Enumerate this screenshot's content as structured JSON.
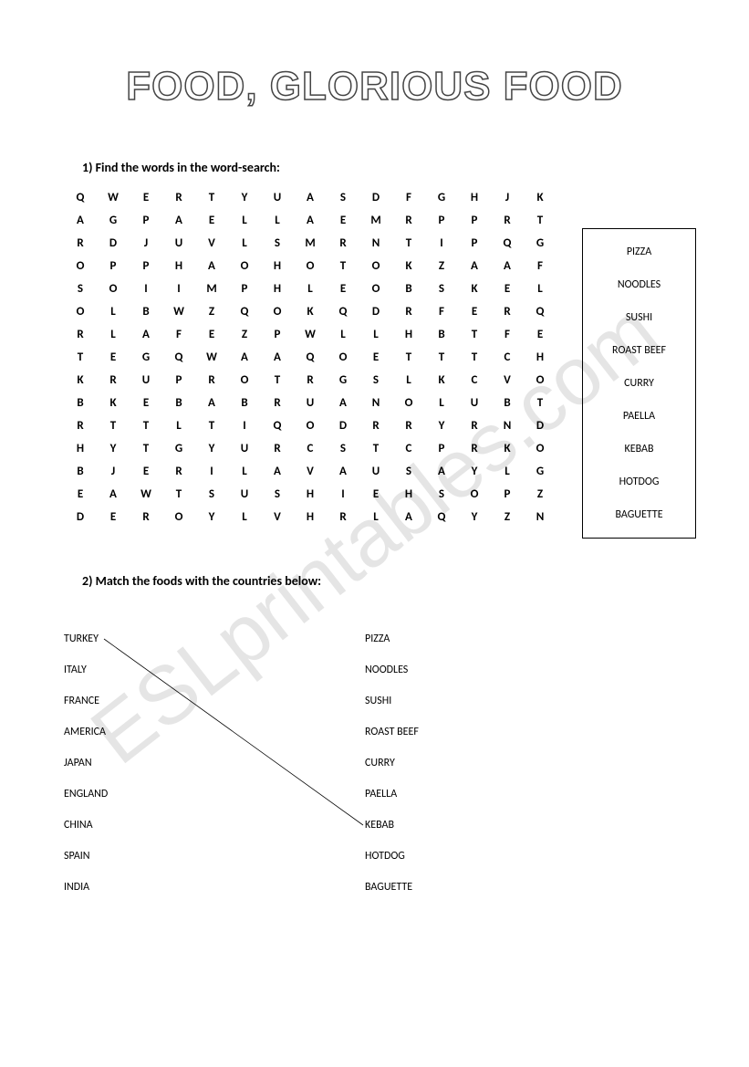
{
  "title": "FOOD, GLORIOUS FOOD",
  "watermark": "ESLprintables.com",
  "section1": {
    "instruction": "1)   Find the words in the word-search:",
    "grid": [
      [
        "Q",
        "W",
        "E",
        "R",
        "T",
        "Y",
        "U",
        "A",
        "S",
        "D",
        "F",
        "G",
        "H",
        "J",
        "K"
      ],
      [
        "A",
        "G",
        "P",
        "A",
        "E",
        "L",
        "L",
        "A",
        "E",
        "M",
        "R",
        "P",
        "P",
        "R",
        "T"
      ],
      [
        "R",
        "D",
        "J",
        "U",
        "V",
        "L",
        "S",
        "M",
        "R",
        "N",
        "T",
        "I",
        "P",
        "Q",
        "G"
      ],
      [
        "O",
        "P",
        "P",
        "H",
        "A",
        "O",
        "H",
        "O",
        "T",
        "O",
        "K",
        "Z",
        "A",
        "A",
        "F"
      ],
      [
        "S",
        "O",
        "I",
        "I",
        "M",
        "P",
        "H",
        "L",
        "E",
        "O",
        "B",
        "S",
        "K",
        "E",
        "L"
      ],
      [
        "O",
        "L",
        "B",
        "W",
        "Z",
        "Q",
        "O",
        "K",
        "Q",
        "D",
        "R",
        "F",
        "E",
        "R",
        "Q"
      ],
      [
        "R",
        "L",
        "A",
        "F",
        "E",
        "Z",
        "P",
        "W",
        "L",
        "L",
        "H",
        "B",
        "T",
        "F",
        "E"
      ],
      [
        "T",
        "E",
        "G",
        "Q",
        "W",
        "A",
        "A",
        "Q",
        "O",
        "E",
        "T",
        "T",
        "T",
        "C",
        "H"
      ],
      [
        "K",
        "R",
        "U",
        "P",
        "R",
        "O",
        "T",
        "R",
        "G",
        "S",
        "L",
        "K",
        "C",
        "V",
        "O"
      ],
      [
        "B",
        "K",
        "E",
        "B",
        "A",
        "B",
        "R",
        "U",
        "A",
        "N",
        "O",
        "L",
        "U",
        "B",
        "T"
      ],
      [
        "R",
        "T",
        "T",
        "L",
        "T",
        "I",
        "Q",
        "O",
        "D",
        "R",
        "R",
        "Y",
        "R",
        "N",
        "D"
      ],
      [
        "H",
        "Y",
        "T",
        "G",
        "Y",
        "U",
        "R",
        "C",
        "S",
        "T",
        "C",
        "P",
        "R",
        "K",
        "O"
      ],
      [
        "B",
        "J",
        "E",
        "R",
        "I",
        "L",
        "A",
        "V",
        "A",
        "U",
        "S",
        "A",
        "Y",
        "L",
        "G"
      ],
      [
        "E",
        "A",
        "W",
        "T",
        "S",
        "U",
        "S",
        "H",
        "I",
        "E",
        "H",
        "S",
        "O",
        "P",
        "Z"
      ],
      [
        "D",
        "E",
        "R",
        "O",
        "Y",
        "L",
        "V",
        "H",
        "R",
        "L",
        "A",
        "Q",
        "Y",
        "Z",
        "N"
      ]
    ],
    "words": [
      "PIZZA",
      "NOODLES",
      "SUSHI",
      "ROAST BEEF",
      "CURRY",
      "PAELLA",
      "KEBAB",
      "HOTDOG",
      "BAGUETTE"
    ]
  },
  "section2": {
    "instruction": "2)   Match the foods with the countries below:",
    "countries": [
      "TURKEY",
      "ITALY",
      "FRANCE",
      "AMERICA",
      "JAPAN",
      "ENGLAND",
      "CHINA",
      "SPAIN",
      "INDIA"
    ],
    "foods": [
      "PIZZA",
      "NOODLES",
      "SUSHI",
      "ROAST BEEF",
      "CURRY",
      "PAELLA",
      "KEBAB",
      "HOTDOG",
      "BAGUETTE"
    ],
    "example_line": {
      "from_country_index": 0,
      "to_food_index": 6
    }
  }
}
